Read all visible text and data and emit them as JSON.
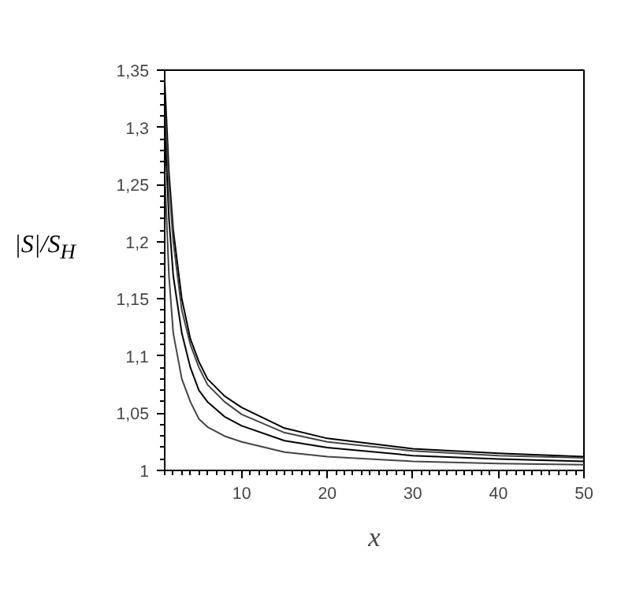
{
  "chart_data": {
    "type": "line",
    "xlabel": "x",
    "ylabel": "|S|/S$_{H}$",
    "xlim": [
      1,
      50
    ],
    "ylim": [
      1,
      1.35
    ],
    "xticks": [
      10,
      20,
      30,
      40,
      50
    ],
    "yticks": [
      1,
      {
        "value": 1.05,
        "label": "1,05"
      },
      {
        "value": 1.1,
        "label": "1,1"
      },
      {
        "value": 1.15,
        "label": "1,15"
      },
      {
        "value": 1.2,
        "label": "1,2"
      },
      {
        "value": 1.25,
        "label": "1,25"
      },
      {
        "value": 1.3,
        "label": "1,3"
      },
      {
        "value": 1.35,
        "label": "1,35"
      }
    ],
    "grid": false,
    "line_style": "solid",
    "marker": "none",
    "x": [
      1,
      1.5,
      2,
      3,
      4,
      5,
      6,
      8,
      10,
      15,
      20,
      30,
      40,
      50
    ],
    "series": [
      {
        "color": "#000000",
        "values": [
          1.34,
          1.26,
          1.21,
          1.15,
          1.115,
          1.095,
          1.08,
          1.065,
          1.055,
          1.037,
          1.028,
          1.019,
          1.015,
          1.012
        ]
      },
      {
        "color": "#444444",
        "values": [
          1.32,
          1.25,
          1.2,
          1.14,
          1.11,
          1.09,
          1.075,
          1.06,
          1.049,
          1.033,
          1.025,
          1.017,
          1.013,
          1.011
        ]
      },
      {
        "color": "#000000",
        "values": [
          1.3,
          1.22,
          1.17,
          1.12,
          1.09,
          1.07,
          1.06,
          1.047,
          1.039,
          1.026,
          1.02,
          1.013,
          1.01,
          1.008
        ]
      },
      {
        "color": "#444444",
        "values": [
          1.26,
          1.17,
          1.12,
          1.08,
          1.06,
          1.045,
          1.038,
          1.03,
          1.025,
          1.016,
          1.012,
          1.008,
          1.006,
          1.005
        ]
      }
    ]
  }
}
